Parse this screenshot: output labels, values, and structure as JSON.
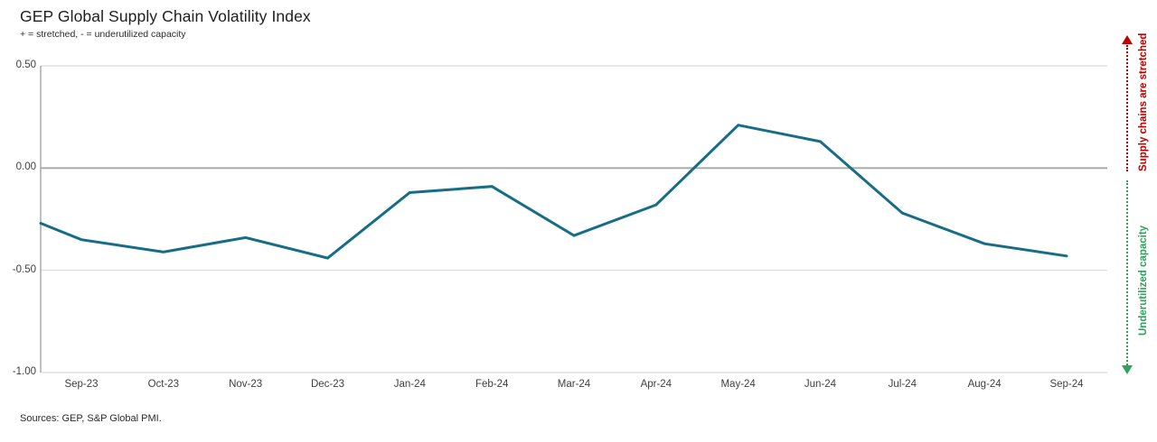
{
  "header": {
    "title": "GEP Global Supply Chain Volatility Index",
    "subtitle": "+ = stretched, - = underutilized capacity"
  },
  "footer": {
    "sources": "Sources: GEP, S&P Global PMI."
  },
  "annotations": {
    "stretched": {
      "label": "Supply chains are stretched",
      "color": "#C00000",
      "direction": "up"
    },
    "underutilized": {
      "label": "Underutilized capacity",
      "color": "#2EA35C",
      "direction": "down"
    }
  },
  "chart_data": {
    "type": "line",
    "title": "GEP Global Supply Chain Volatility Index",
    "subtitle": "+ = stretched, - = underutilized capacity",
    "xlabel": "",
    "ylabel": "",
    "categories": [
      "Sep-23",
      "Oct-23",
      "Nov-23",
      "Dec-23",
      "Jan-24",
      "Feb-24",
      "Mar-24",
      "Apr-24",
      "May-24",
      "Jun-24",
      "Jul-24",
      "Aug-24",
      "Sep-24"
    ],
    "values": [
      -0.35,
      -0.41,
      -0.34,
      -0.44,
      -0.12,
      -0.09,
      -0.33,
      -0.18,
      0.21,
      0.13,
      -0.22,
      -0.37,
      -0.43
    ],
    "leading_edge_value": -0.27,
    "ylim": [
      -1.0,
      0.5
    ],
    "ytick_labels": [
      "0.50",
      "0.00",
      "-0.50",
      "-1.00"
    ],
    "ytick_values": [
      0.5,
      0.0,
      -0.5,
      -1.0
    ],
    "series_color": "#176C86",
    "zero_line_color": "#a6a6a6",
    "grid_color": "#d9d9d9",
    "axis_color": "#a6a6a6",
    "grid": "horizontal",
    "legend": "none"
  }
}
